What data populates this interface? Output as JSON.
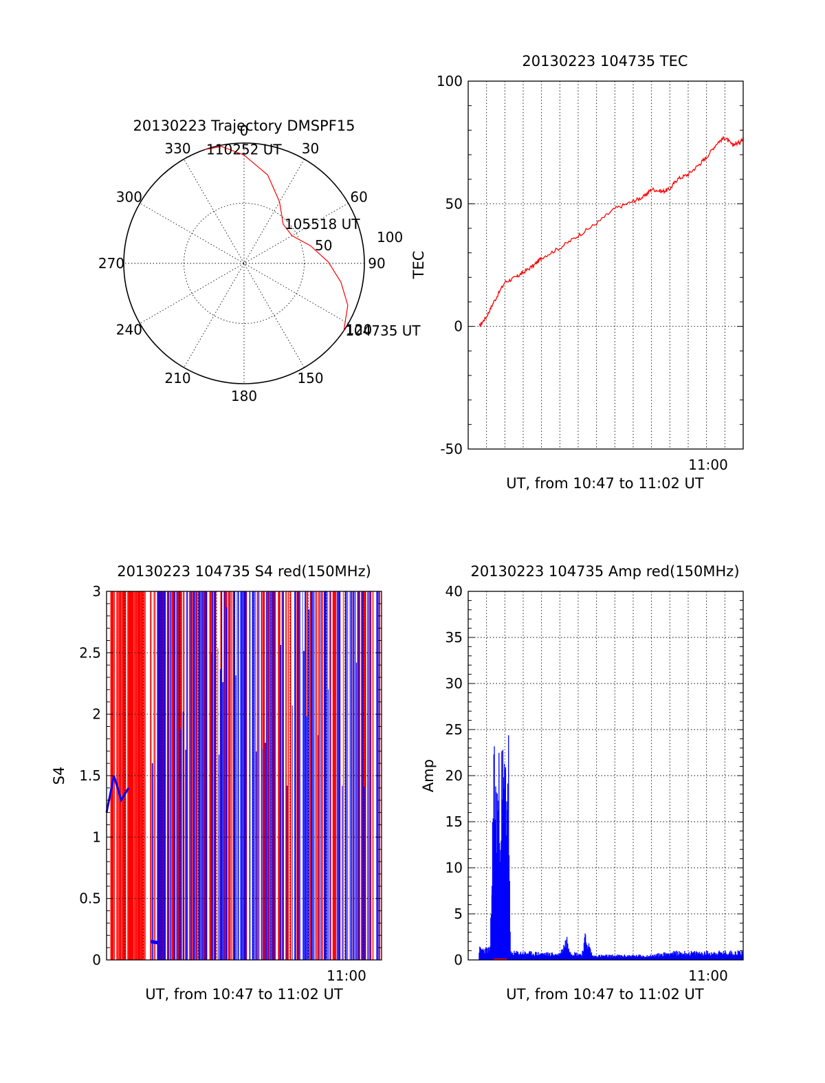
{
  "colors": {
    "red": "#ff0000",
    "blue": "#0000ff",
    "black": "#000000"
  },
  "chart_data": [
    {
      "id": "polar",
      "type": "scatter",
      "projection": "polar",
      "title": "20130223 Trajectory DMSPF15",
      "angle_ticks": [
        "0",
        "30",
        "60",
        "90",
        "120",
        "150",
        "180",
        "210",
        "240",
        "270",
        "300",
        "330"
      ],
      "radius_ticks": [
        "50",
        "100"
      ],
      "grid": true,
      "series": [
        {
          "color": "red",
          "points": [
            [
              124,
              100
            ],
            [
              112,
              93
            ],
            [
              101,
              82
            ],
            [
              89,
              70
            ],
            [
              75,
              57
            ],
            [
              60,
              46
            ],
            [
              45,
              46
            ],
            [
              30,
              59
            ],
            [
              15,
              76
            ],
            [
              0,
              90
            ],
            [
              -11,
              99
            ],
            [
              -19,
              100
            ]
          ]
        }
      ],
      "annotations": [
        {
          "text": "110252 UT",
          "az": -19,
          "r": 100
        },
        {
          "text": "105518 UT",
          "az": 45,
          "r": 46
        },
        {
          "text": "104735 UT",
          "az": 124,
          "r": 100
        }
      ]
    },
    {
      "id": "tec",
      "type": "line",
      "title": "20130223 104735 TEC",
      "ylabel": "TEC",
      "xlabel": "UT, from 10:47 to 11:02 UT",
      "x_tick_label": "11:00",
      "ylim": [
        -50,
        100
      ],
      "y_ticks": [
        "100",
        "50",
        "0",
        "-50"
      ],
      "grid": true,
      "series": [
        {
          "color": "red",
          "x": [
            0.6,
            1,
            1.4,
            2,
            2.6,
            3,
            3.6,
            4,
            5,
            6,
            7,
            8,
            9,
            9.6,
            10,
            10.6,
            11,
            11.4,
            12,
            12.6,
            13,
            13.6,
            14,
            14.4,
            14.8,
            15
          ],
          "y": [
            0,
            4,
            10,
            18,
            20,
            22,
            25,
            28,
            32,
            37,
            42,
            48,
            51,
            53,
            56,
            55,
            56,
            60,
            62,
            66,
            69,
            75,
            77,
            74,
            75,
            77
          ]
        }
      ]
    },
    {
      "id": "s4",
      "type": "line",
      "title": "20130223 104735 S4 red(150MHz)",
      "ylabel": "S4",
      "xlabel": "UT, from 10:47 to 11:02 UT",
      "x_tick_label": "11:00",
      "ylim": [
        0,
        3
      ],
      "y_ticks": [
        "3",
        "2.5",
        "2",
        "1.5",
        "1",
        "0.5",
        "0"
      ],
      "grid": true,
      "series": [
        {
          "color": "red",
          "level": [
            0,
            3
          ]
        },
        {
          "color": "blue",
          "level": [
            0,
            3
          ],
          "low_x": [
            0,
            0.4,
            0.8,
            1.2,
            2.4,
            2.8,
            3.2,
            4.8,
            5.6
          ],
          "low_y": [
            1.2,
            1.5,
            1.3,
            1.4,
            0.15,
            0.14,
            1.1,
            0.6,
            0.55
          ]
        }
      ]
    },
    {
      "id": "amp",
      "type": "line",
      "title": "20130223 104735 Amp red(150MHz)",
      "ylabel": "Amp",
      "xlabel": "UT, from 10:47 to 11:02 UT",
      "x_tick_label": "11:00",
      "ylim": [
        0,
        40
      ],
      "y_ticks": [
        "40",
        "35",
        "30",
        "25",
        "20",
        "15",
        "10",
        "5",
        "0"
      ],
      "grid": true,
      "series": [
        {
          "color": "blue",
          "x": [
            0.6,
            1.2,
            1.3,
            1.4,
            1.5,
            2.2,
            2.3,
            3,
            5,
            5.4,
            5.6,
            6.2,
            6.4,
            6.8,
            7,
            10,
            11,
            13,
            15
          ],
          "y": [
            1.5,
            1.5,
            12,
            27,
            22,
            26,
            1,
            1,
            0.8,
            3,
            1,
            0.8,
            3.2,
            0.5,
            0.6,
            0.6,
            1,
            1,
            1.1
          ]
        },
        {
          "color": "red",
          "x": [
            1.4,
            2.1
          ],
          "y": [
            0.1,
            0.1
          ]
        }
      ]
    }
  ]
}
